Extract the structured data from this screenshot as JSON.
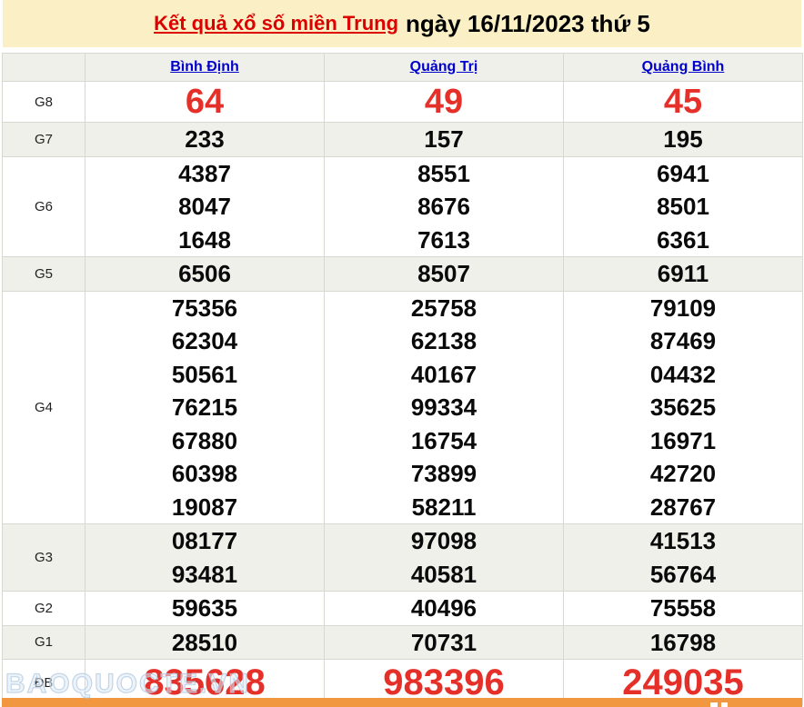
{
  "title": {
    "link": "Kết quả xổ số miền Trung",
    "rest": "ngày 16/11/2023 thứ 5"
  },
  "table": {
    "provinces": [
      "Bình Định",
      "Quảng Trị",
      "Quảng Bình"
    ],
    "rows": [
      {
        "label": "G8",
        "style": "g8",
        "shaded": false,
        "values": [
          [
            "64"
          ],
          [
            "49"
          ],
          [
            "45"
          ]
        ]
      },
      {
        "label": "G7",
        "style": "normal",
        "shaded": true,
        "values": [
          [
            "233"
          ],
          [
            "157"
          ],
          [
            "195"
          ]
        ]
      },
      {
        "label": "G6",
        "style": "normal",
        "shaded": false,
        "values": [
          [
            "4387",
            "8047",
            "1648"
          ],
          [
            "8551",
            "8676",
            "7613"
          ],
          [
            "6941",
            "8501",
            "6361"
          ]
        ]
      },
      {
        "label": "G5",
        "style": "normal",
        "shaded": true,
        "values": [
          [
            "6506"
          ],
          [
            "8507"
          ],
          [
            "6911"
          ]
        ]
      },
      {
        "label": "G4",
        "style": "normal",
        "shaded": false,
        "values": [
          [
            "75356",
            "62304",
            "50561",
            "76215",
            "67880",
            "60398",
            "19087"
          ],
          [
            "25758",
            "62138",
            "40167",
            "99334",
            "16754",
            "73899",
            "58211"
          ],
          [
            "79109",
            "87469",
            "04432",
            "35625",
            "16971",
            "42720",
            "28767"
          ]
        ]
      },
      {
        "label": "G3",
        "style": "normal",
        "shaded": true,
        "values": [
          [
            "08177",
            "93481"
          ],
          [
            "97098",
            "40581"
          ],
          [
            "41513",
            "56764"
          ]
        ]
      },
      {
        "label": "G2",
        "style": "normal",
        "shaded": false,
        "values": [
          [
            "59635"
          ],
          [
            "40496"
          ],
          [
            "75558"
          ]
        ]
      },
      {
        "label": "G1",
        "style": "normal",
        "shaded": true,
        "values": [
          [
            "28510"
          ],
          [
            "70731"
          ],
          [
            "16798"
          ]
        ]
      },
      {
        "label": "ĐB",
        "style": "db",
        "shaded": false,
        "values": [
          [
            "835628"
          ],
          [
            "983396"
          ],
          [
            "249035"
          ]
        ]
      }
    ]
  },
  "watermark": "BAOQUOCTE.VN",
  "colors": {
    "title_bar_background": "#fbf0c5",
    "title_link_red": "#dd0000",
    "province_link_blue": "#0000cc",
    "highlight_number_red": "#e5302a",
    "row_stripe": "#f0f0ea",
    "table_border": "#d8d8d0",
    "footer_bar_orange": "#f0973f"
  }
}
